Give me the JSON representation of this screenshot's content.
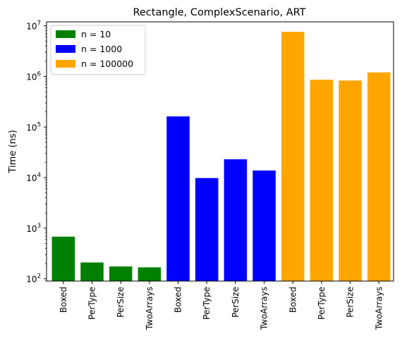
{
  "chart_data": {
    "type": "bar",
    "title": "Rectangle, ComplexScenario, ART",
    "xlabel": "",
    "ylabel": "Time (ns)",
    "yscale": "log",
    "ylim": [
      90,
      12000000
    ],
    "yticks": [
      {
        "value": 100,
        "base": "10",
        "exp": "2"
      },
      {
        "value": 1000,
        "base": "10",
        "exp": "3"
      },
      {
        "value": 10000,
        "base": "10",
        "exp": "4"
      },
      {
        "value": 100000,
        "base": "10",
        "exp": "5"
      },
      {
        "value": 1000000,
        "base": "10",
        "exp": "6"
      },
      {
        "value": 10000000,
        "base": "10",
        "exp": "7"
      }
    ],
    "legend_position": "top-left",
    "series": [
      {
        "name": "n = 10",
        "color": "#008000",
        "categories": [
          "Boxed",
          "PerType",
          "PerSize",
          "TwoArrays"
        ],
        "values": [
          680,
          210,
          175,
          168
        ]
      },
      {
        "name": "n = 1000",
        "color": "#0000ff",
        "categories": [
          "Boxed",
          "PerType",
          "PerSize",
          "TwoArrays"
        ],
        "values": [
          162000,
          9800,
          23000,
          13800
        ]
      },
      {
        "name": "n = 100000",
        "color": "#ffa500",
        "categories": [
          "Boxed",
          "PerType",
          "PerSize",
          "TwoArrays"
        ],
        "values": [
          7600000,
          860000,
          830000,
          1200000
        ]
      }
    ]
  }
}
